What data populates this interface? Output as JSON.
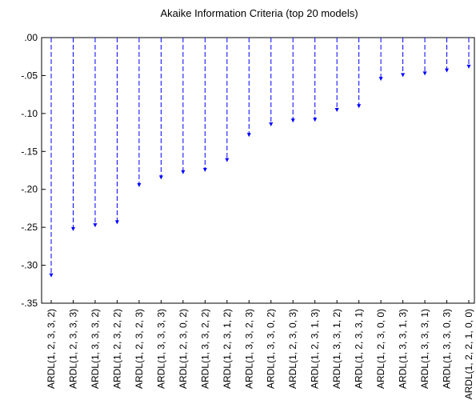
{
  "chart_data": {
    "type": "bar",
    "title": "Akaike Information Criteria (top 20 models)",
    "xlabel": "",
    "ylabel": "",
    "ylim": [
      -0.35,
      0.0
    ],
    "yticks": [
      ".00",
      "-.05",
      "-.10",
      "-.15",
      "-.20",
      "-.25",
      "-.30",
      "-.35"
    ],
    "grid": false,
    "legend": "none",
    "marker": "dashed stem with arrowhead",
    "color": "#0000ff",
    "categories": [
      "ARDL(1, 2, 3, 3, 2)",
      "ARDL(1, 2, 3, 3, 3)",
      "ARDL(1, 3, 3, 3, 2)",
      "ARDL(1, 2, 3, 2, 2)",
      "ARDL(1, 2, 3, 2, 3)",
      "ARDL(1, 3, 3, 3, 3)",
      "ARDL(1, 2, 3, 0, 2)",
      "ARDL(1, 3, 3, 2, 2)",
      "ARDL(1, 2, 3, 1, 2)",
      "ARDL(1, 3, 3, 2, 3)",
      "ARDL(1, 3, 3, 0, 2)",
      "ARDL(1, 2, 3, 0, 3)",
      "ARDL(1, 2, 3, 1, 3)",
      "ARDL(1, 3, 3, 1, 2)",
      "ARDL(1, 2, 3, 3, 1)",
      "ARDL(1, 2, 3, 0, 0)",
      "ARDL(1, 3, 3, 1, 3)",
      "ARDL(1, 3, 3, 3, 1)",
      "ARDL(1, 3, 3, 0, 3)",
      "ARDL(1, 2, 2, 1, 0, 0)"
    ],
    "values": [
      -0.316,
      -0.255,
      -0.25,
      -0.246,
      -0.197,
      -0.187,
      -0.18,
      -0.177,
      -0.164,
      -0.131,
      -0.117,
      -0.112,
      -0.111,
      -0.098,
      -0.093,
      -0.057,
      -0.052,
      -0.05,
      -0.046,
      -0.041
    ]
  }
}
